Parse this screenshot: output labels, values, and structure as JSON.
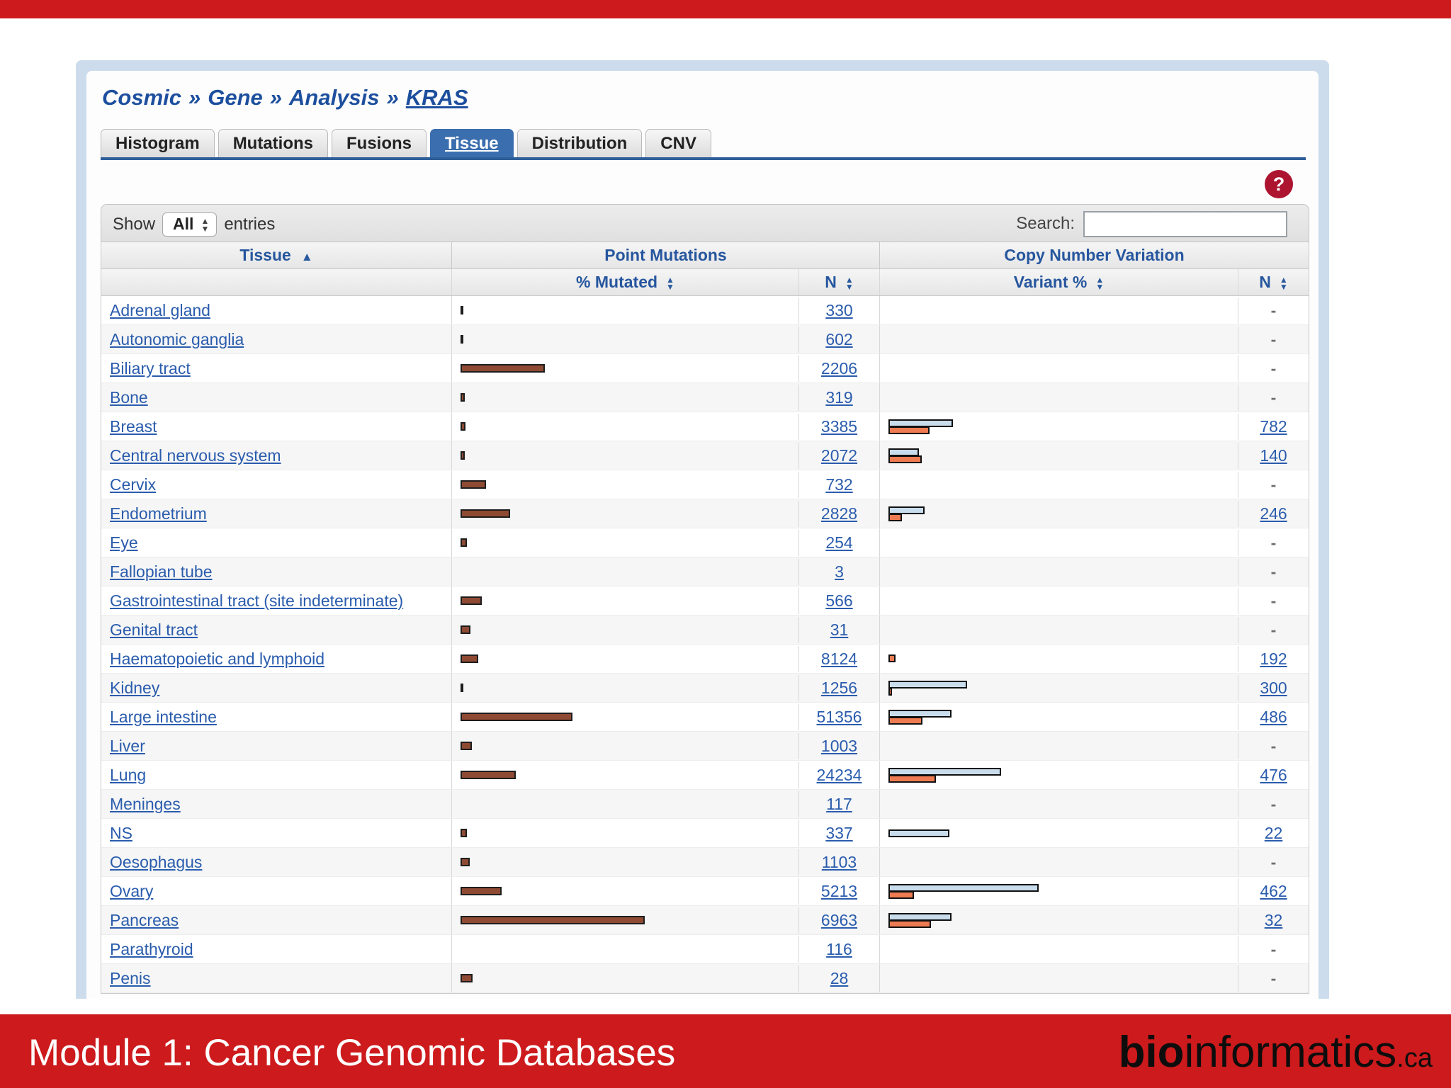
{
  "slide": {
    "title": "Module 1: Cancer Genomic Databases",
    "logo_bold": "bio",
    "logo_regular": "informatics",
    "logo_suffix": ".ca",
    "accent_red": "#cd1a1c"
  },
  "breadcrumb": {
    "separator": "»",
    "parts": [
      "Cosmic",
      "Gene",
      "Analysis",
      "KRAS"
    ]
  },
  "tabs": [
    {
      "label": "Histogram",
      "active": false
    },
    {
      "label": "Mutations",
      "active": false
    },
    {
      "label": "Fusions",
      "active": false
    },
    {
      "label": "Tissue",
      "active": true
    },
    {
      "label": "Distribution",
      "active": false
    },
    {
      "label": "CNV",
      "active": false
    }
  ],
  "help_icon": "?",
  "toolbar": {
    "show_label": "Show",
    "show_value": "All",
    "entries_label": "entries",
    "search_label": "Search:",
    "search_value": ""
  },
  "table": {
    "group_headers": {
      "tissue": "Tissue",
      "point_mutations": "Point Mutations",
      "cnv": "Copy Number Variation"
    },
    "sub_headers": {
      "pct_mutated": "% Mutated",
      "n1": "N",
      "variant_pct": "Variant %",
      "n2": "N"
    },
    "bar_colors": {
      "point_mutation": "#8e4a33",
      "cnv_gain": "#c9dcec",
      "cnv_loss": "#ee7b52"
    },
    "rows": [
      {
        "tissue": "Adrenal gland",
        "pm_pct": 0.8,
        "pm_n": "330",
        "gain_pct": 0,
        "loss_pct": 0,
        "cnv_n": "-"
      },
      {
        "tissue": "Autonomic ganglia",
        "pm_pct": 0.8,
        "pm_n": "602",
        "gain_pct": 0,
        "loss_pct": 0,
        "cnv_n": "-"
      },
      {
        "tissue": "Biliary tract",
        "pm_pct": 25.5,
        "pm_n": "2206",
        "gain_pct": 0,
        "loss_pct": 0,
        "cnv_n": "-"
      },
      {
        "tissue": "Bone",
        "pm_pct": 1.2,
        "pm_n": "319",
        "gain_pct": 0,
        "loss_pct": 0,
        "cnv_n": "-"
      },
      {
        "tissue": "Breast",
        "pm_pct": 1.6,
        "pm_n": "3385",
        "gain_pct": 19,
        "loss_pct": 12,
        "cnv_n": "782"
      },
      {
        "tissue": "Central nervous system",
        "pm_pct": 1.3,
        "pm_n": "2072",
        "gain_pct": 9,
        "loss_pct": 9.7,
        "cnv_n": "140"
      },
      {
        "tissue": "Cervix",
        "pm_pct": 7.8,
        "pm_n": "732",
        "gain_pct": 0,
        "loss_pct": 0,
        "cnv_n": "-"
      },
      {
        "tissue": "Endometrium",
        "pm_pct": 15,
        "pm_n": "2828",
        "gain_pct": 10.5,
        "loss_pct": 4,
        "cnv_n": "246"
      },
      {
        "tissue": "Eye",
        "pm_pct": 2,
        "pm_n": "254",
        "gain_pct": 0,
        "loss_pct": 0,
        "cnv_n": "-"
      },
      {
        "tissue": "Fallopian tube",
        "pm_pct": 0,
        "pm_n": "3",
        "gain_pct": 0,
        "loss_pct": 0,
        "cnv_n": "-"
      },
      {
        "tissue": "Gastrointestinal tract (site indeterminate)",
        "pm_pct": 6.5,
        "pm_n": "566",
        "gain_pct": 0,
        "loss_pct": 0,
        "cnv_n": "-"
      },
      {
        "tissue": "Genital tract",
        "pm_pct": 3.1,
        "pm_n": "31",
        "gain_pct": 0,
        "loss_pct": 0,
        "cnv_n": "-"
      },
      {
        "tissue": "Haematopoietic and lymphoid",
        "pm_pct": 5.3,
        "pm_n": "8124",
        "gain_pct": 0,
        "loss_pct": 2,
        "cnv_n": "192"
      },
      {
        "tissue": "Kidney",
        "pm_pct": 0.9,
        "pm_n": "1256",
        "gain_pct": 23,
        "loss_pct": 1,
        "cnv_n": "300"
      },
      {
        "tissue": "Large intestine",
        "pm_pct": 34,
        "pm_n": "51356",
        "gain_pct": 18.5,
        "loss_pct": 10,
        "cnv_n": "486"
      },
      {
        "tissue": "Liver",
        "pm_pct": 3.5,
        "pm_n": "1003",
        "gain_pct": 0,
        "loss_pct": 0,
        "cnv_n": "-"
      },
      {
        "tissue": "Lung",
        "pm_pct": 16.8,
        "pm_n": "24234",
        "gain_pct": 33,
        "loss_pct": 14,
        "cnv_n": "476"
      },
      {
        "tissue": "Meninges",
        "pm_pct": 0,
        "pm_n": "117",
        "gain_pct": 0,
        "loss_pct": 0,
        "cnv_n": "-"
      },
      {
        "tissue": "NS",
        "pm_pct": 1.9,
        "pm_n": "337",
        "gain_pct": 17.8,
        "loss_pct": 0,
        "cnv_n": "22"
      },
      {
        "tissue": "Oesophagus",
        "pm_pct": 2.8,
        "pm_n": "1103",
        "gain_pct": 0,
        "loss_pct": 0,
        "cnv_n": "-"
      },
      {
        "tissue": "Ovary",
        "pm_pct": 12.4,
        "pm_n": "5213",
        "gain_pct": 44,
        "loss_pct": 7.5,
        "cnv_n": "462"
      },
      {
        "tissue": "Pancreas",
        "pm_pct": 56,
        "pm_n": "6963",
        "gain_pct": 18.5,
        "loss_pct": 12.5,
        "cnv_n": "32"
      },
      {
        "tissue": "Parathyroid",
        "pm_pct": 0,
        "pm_n": "116",
        "gain_pct": 0,
        "loss_pct": 0,
        "cnv_n": "-"
      },
      {
        "tissue": "Penis",
        "pm_pct": 3.7,
        "pm_n": "28",
        "gain_pct": 0,
        "loss_pct": 0,
        "cnv_n": "-"
      }
    ]
  }
}
